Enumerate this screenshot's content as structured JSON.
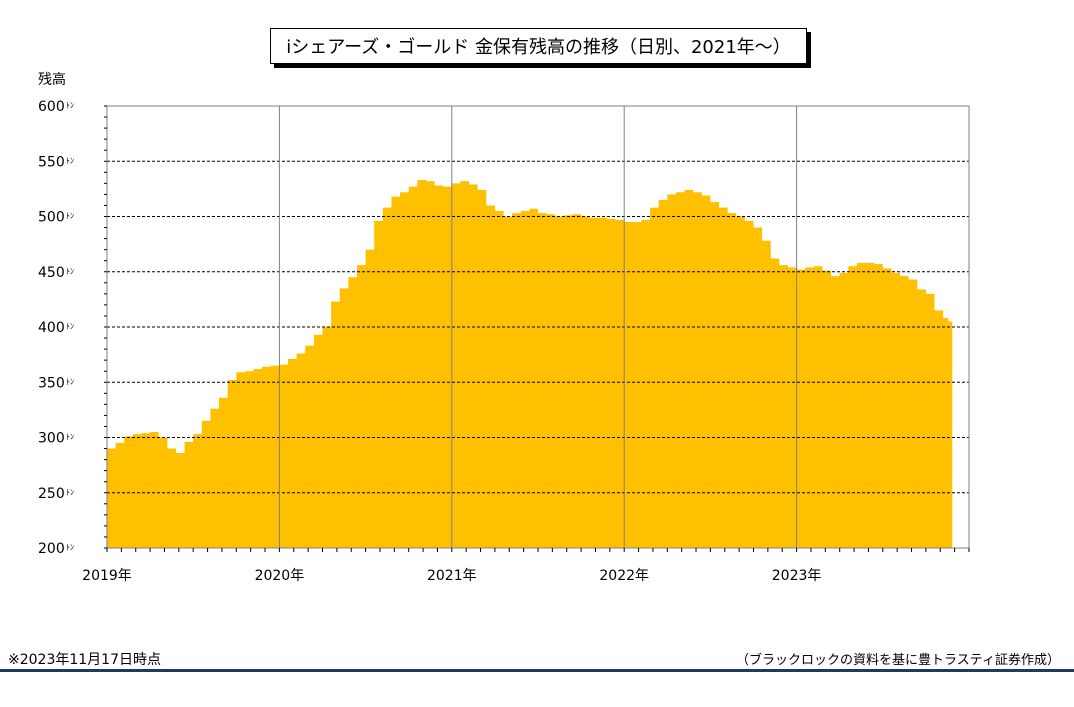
{
  "title": "iシェアーズ・ゴールド 金保有残高の推移（日別、2021年～）",
  "footnote": "※2023年11月17日時点",
  "source": "（ブラックロックの資料を基に豊トラスティ証券作成）",
  "colors": {
    "fill": "#FFC000",
    "grid": "#000000",
    "rule": "#1F3864"
  },
  "chart_data": {
    "type": "area",
    "ylabel": "残高",
    "y_unit": "ﾄﾝ",
    "ylim": [
      200,
      600
    ],
    "yticks": [
      200,
      250,
      300,
      350,
      400,
      450,
      500,
      550,
      600
    ],
    "xlim": [
      2019.0,
      2024.0
    ],
    "xtick_labels": [
      {
        "x": 2019,
        "label": "2019年"
      },
      {
        "x": 2020,
        "label": "2020年"
      },
      {
        "x": 2021,
        "label": "2021年"
      },
      {
        "x": 2022,
        "label": "2022年"
      },
      {
        "x": 2023,
        "label": "2023年"
      }
    ],
    "grid": true,
    "series": [
      {
        "points": [
          [
            2019.0,
            290
          ],
          [
            2019.05,
            295
          ],
          [
            2019.1,
            301
          ],
          [
            2019.15,
            303
          ],
          [
            2019.2,
            304
          ],
          [
            2019.25,
            305
          ],
          [
            2019.3,
            300
          ],
          [
            2019.35,
            290
          ],
          [
            2019.4,
            286
          ],
          [
            2019.45,
            296
          ],
          [
            2019.5,
            303
          ],
          [
            2019.55,
            315
          ],
          [
            2019.6,
            326
          ],
          [
            2019.65,
            336
          ],
          [
            2019.7,
            352
          ],
          [
            2019.75,
            359
          ],
          [
            2019.8,
            360
          ],
          [
            2019.85,
            362
          ],
          [
            2019.9,
            364
          ],
          [
            2019.95,
            365
          ],
          [
            2020.0,
            366
          ],
          [
            2020.05,
            371
          ],
          [
            2020.1,
            376
          ],
          [
            2020.15,
            383
          ],
          [
            2020.2,
            393
          ],
          [
            2020.25,
            400
          ],
          [
            2020.3,
            423
          ],
          [
            2020.35,
            435
          ],
          [
            2020.4,
            445
          ],
          [
            2020.45,
            456
          ],
          [
            2020.5,
            470
          ],
          [
            2020.55,
            496
          ],
          [
            2020.6,
            508
          ],
          [
            2020.65,
            518
          ],
          [
            2020.7,
            522
          ],
          [
            2020.75,
            527
          ],
          [
            2020.8,
            533
          ],
          [
            2020.85,
            532
          ],
          [
            2020.9,
            528
          ],
          [
            2020.95,
            527
          ],
          [
            2021.0,
            530
          ],
          [
            2021.05,
            532
          ],
          [
            2021.1,
            529
          ],
          [
            2021.15,
            524
          ],
          [
            2021.2,
            510
          ],
          [
            2021.25,
            505
          ],
          [
            2021.3,
            500
          ],
          [
            2021.35,
            503
          ],
          [
            2021.4,
            505
          ],
          [
            2021.45,
            507
          ],
          [
            2021.5,
            503
          ],
          [
            2021.55,
            502
          ],
          [
            2021.6,
            500
          ],
          [
            2021.65,
            501
          ],
          [
            2021.7,
            502
          ],
          [
            2021.75,
            500
          ],
          [
            2021.8,
            499
          ],
          [
            2021.85,
            499
          ],
          [
            2021.9,
            498
          ],
          [
            2021.95,
            497
          ],
          [
            2022.0,
            495
          ],
          [
            2022.05,
            495
          ],
          [
            2022.1,
            497
          ],
          [
            2022.15,
            508
          ],
          [
            2022.2,
            515
          ],
          [
            2022.25,
            520
          ],
          [
            2022.3,
            522
          ],
          [
            2022.35,
            524
          ],
          [
            2022.4,
            522
          ],
          [
            2022.45,
            519
          ],
          [
            2022.5,
            513
          ],
          [
            2022.55,
            508
          ],
          [
            2022.6,
            503
          ],
          [
            2022.65,
            500
          ],
          [
            2022.7,
            496
          ],
          [
            2022.75,
            490
          ],
          [
            2022.8,
            478
          ],
          [
            2022.85,
            462
          ],
          [
            2022.9,
            456
          ],
          [
            2022.95,
            454
          ],
          [
            2023.0,
            452
          ],
          [
            2023.05,
            454
          ],
          [
            2023.1,
            455
          ],
          [
            2023.15,
            451
          ],
          [
            2023.2,
            446
          ],
          [
            2023.25,
            449
          ],
          [
            2023.3,
            455
          ],
          [
            2023.35,
            458
          ],
          [
            2023.4,
            458
          ],
          [
            2023.45,
            457
          ],
          [
            2023.5,
            453
          ],
          [
            2023.55,
            449
          ],
          [
            2023.6,
            446
          ],
          [
            2023.65,
            443
          ],
          [
            2023.7,
            434
          ],
          [
            2023.75,
            430
          ],
          [
            2023.8,
            415
          ],
          [
            2023.85,
            408
          ],
          [
            2023.88,
            405
          ]
        ]
      }
    ]
  }
}
